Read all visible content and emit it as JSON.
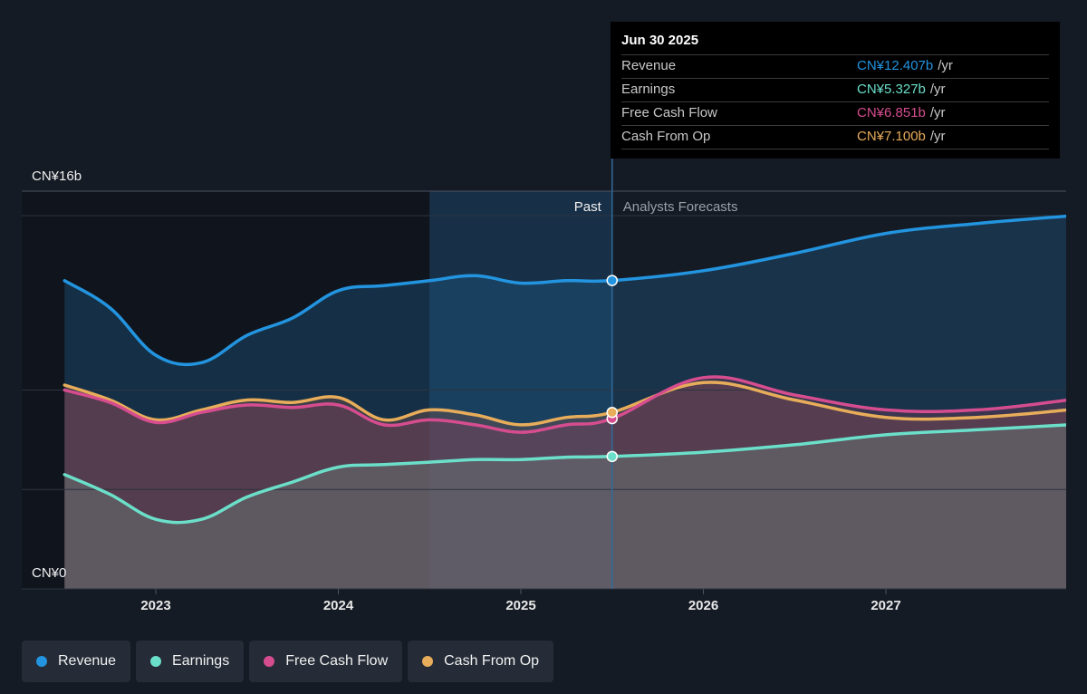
{
  "chart_data": {
    "type": "area",
    "y_axis": {
      "min": 0,
      "max": 16,
      "top_label": "CN¥16b",
      "bottom_label": "CN¥0"
    },
    "x_ticks": [
      "2023",
      "2024",
      "2025",
      "2026",
      "2027"
    ],
    "past_label": "Past",
    "forecast_label": "Analysts Forecasts",
    "series": [
      {
        "name": "Revenue",
        "key": "revenue",
        "color": "#2394df",
        "values": [
          [
            2022.5,
            12.4
          ],
          [
            2022.75,
            11.3
          ],
          [
            2023.0,
            9.4
          ],
          [
            2023.25,
            9.1
          ],
          [
            2023.5,
            10.2
          ],
          [
            2023.75,
            10.9
          ],
          [
            2024.0,
            12.0
          ],
          [
            2024.25,
            12.2
          ],
          [
            2024.5,
            12.4
          ],
          [
            2024.75,
            12.6
          ],
          [
            2025.0,
            12.3
          ],
          [
            2025.25,
            12.4
          ],
          [
            2025.5,
            12.407
          ],
          [
            2026.0,
            12.8
          ],
          [
            2026.5,
            13.5
          ],
          [
            2027.0,
            14.3
          ],
          [
            2027.5,
            14.7
          ],
          [
            2028.0,
            15.0
          ]
        ]
      },
      {
        "name": "Earnings",
        "key": "earnings",
        "color": "#6bdfc9",
        "values": [
          [
            2022.5,
            4.6
          ],
          [
            2022.75,
            3.8
          ],
          [
            2023.0,
            2.8
          ],
          [
            2023.25,
            2.8
          ],
          [
            2023.5,
            3.7
          ],
          [
            2023.75,
            4.3
          ],
          [
            2024.0,
            4.9
          ],
          [
            2024.25,
            5.0
          ],
          [
            2024.5,
            5.1
          ],
          [
            2024.75,
            5.2
          ],
          [
            2025.0,
            5.2
          ],
          [
            2025.25,
            5.3
          ],
          [
            2025.5,
            5.327
          ],
          [
            2026.0,
            5.5
          ],
          [
            2026.5,
            5.8
          ],
          [
            2027.0,
            6.2
          ],
          [
            2027.5,
            6.4
          ],
          [
            2028.0,
            6.6
          ]
        ]
      },
      {
        "name": "Free Cash Flow",
        "key": "fcf",
        "color": "#d64d8f",
        "values": [
          [
            2022.5,
            8.0
          ],
          [
            2022.75,
            7.5
          ],
          [
            2023.0,
            6.7
          ],
          [
            2023.25,
            7.1
          ],
          [
            2023.5,
            7.4
          ],
          [
            2023.75,
            7.3
          ],
          [
            2024.0,
            7.4
          ],
          [
            2024.25,
            6.6
          ],
          [
            2024.5,
            6.8
          ],
          [
            2024.75,
            6.6
          ],
          [
            2025.0,
            6.3
          ],
          [
            2025.25,
            6.6
          ],
          [
            2025.5,
            6.851
          ],
          [
            2026.0,
            8.5
          ],
          [
            2026.5,
            7.8
          ],
          [
            2027.0,
            7.2
          ],
          [
            2027.5,
            7.2
          ],
          [
            2028.0,
            7.6
          ]
        ]
      },
      {
        "name": "Cash From Op",
        "key": "cfo",
        "color": "#e8ad5a",
        "values": [
          [
            2022.5,
            8.2
          ],
          [
            2022.75,
            7.6
          ],
          [
            2023.0,
            6.8
          ],
          [
            2023.25,
            7.2
          ],
          [
            2023.5,
            7.6
          ],
          [
            2023.75,
            7.5
          ],
          [
            2024.0,
            7.7
          ],
          [
            2024.25,
            6.8
          ],
          [
            2024.5,
            7.2
          ],
          [
            2024.75,
            7.0
          ],
          [
            2025.0,
            6.6
          ],
          [
            2025.25,
            6.9
          ],
          [
            2025.5,
            7.1
          ],
          [
            2026.0,
            8.3
          ],
          [
            2026.5,
            7.6
          ],
          [
            2027.0,
            6.9
          ],
          [
            2027.5,
            6.9
          ],
          [
            2028.0,
            7.2
          ]
        ]
      }
    ],
    "forecast_start": 2025.5,
    "past_highlight_start": 2024.5,
    "tooltip": {
      "date": "Jun 30 2025",
      "rows": [
        {
          "name": "Revenue",
          "value": "CN¥12.407b",
          "unit": "/yr",
          "color": "#2394df"
        },
        {
          "name": "Earnings",
          "value": "CN¥5.327b",
          "unit": "/yr",
          "color": "#6bdfc9"
        },
        {
          "name": "Free Cash Flow",
          "value": "CN¥6.851b",
          "unit": "/yr",
          "color": "#d64d8f"
        },
        {
          "name": "Cash From Op",
          "value": "CN¥7.100b",
          "unit": "/yr",
          "color": "#e8ad5a"
        }
      ]
    }
  },
  "legend": [
    {
      "label": "Revenue",
      "color": "#2394df"
    },
    {
      "label": "Earnings",
      "color": "#6bdfc9"
    },
    {
      "label": "Free Cash Flow",
      "color": "#d64d8f"
    },
    {
      "label": "Cash From Op",
      "color": "#e8ad5a"
    }
  ]
}
